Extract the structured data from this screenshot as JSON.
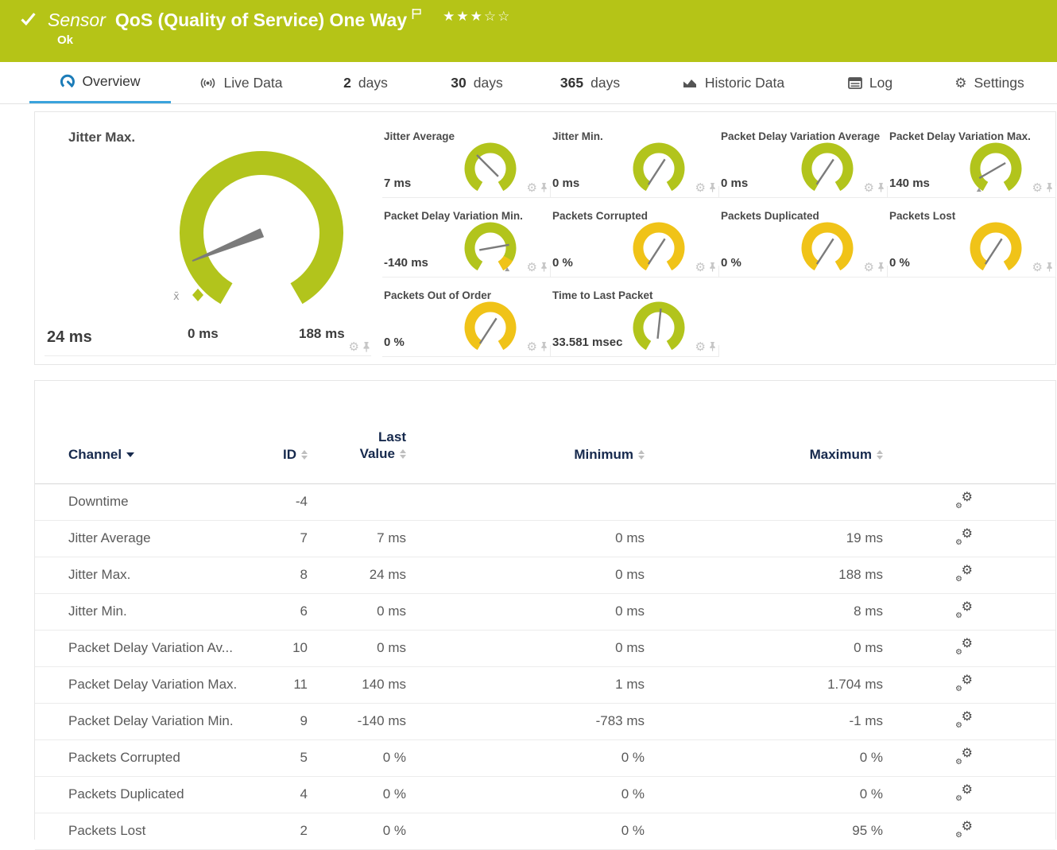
{
  "header": {
    "kind": "Sensor",
    "title": "QoS (Quality of Service) One Way",
    "status": "Ok",
    "rating": {
      "filled": 3,
      "total": 5
    }
  },
  "tabs": {
    "overview": "Overview",
    "live_data": "Live Data",
    "d2_num": "2",
    "d2_unit": "days",
    "d30_num": "30",
    "d30_unit": "days",
    "d365_num": "365",
    "d365_unit": "days",
    "historic": "Historic Data",
    "log": "Log",
    "settings": "Settings"
  },
  "big_gauge": {
    "label": "Jitter Max.",
    "value": "24 ms",
    "min_label": "0 ms",
    "max_label": "188 ms",
    "needle_deg": 248,
    "avg_marker": "x̄"
  },
  "mini_gauges": [
    {
      "label": "Jitter Average",
      "value": "7 ms",
      "color": "green",
      "needle_deg": 315
    },
    {
      "label": "Jitter Min.",
      "value": "0 ms",
      "color": "green",
      "needle_deg": 213
    },
    {
      "label": "Packet Delay Variation Average",
      "value": "0 ms",
      "color": "green",
      "needle_deg": 214
    },
    {
      "label": "Packet Delay Variation Max.",
      "value": "140 ms",
      "color": "green",
      "needle_deg": 240,
      "start_tick": true
    },
    {
      "label": "Packet Delay Variation Min.",
      "value": "-140 ms",
      "color": "green",
      "needle_deg": 80,
      "end_segment": true,
      "end_tick": true
    },
    {
      "label": "Packets Corrupted",
      "value": "0 %",
      "color": "yellow",
      "needle_deg": 213
    },
    {
      "label": "Packets Duplicated",
      "value": "0 %",
      "color": "yellow",
      "needle_deg": 213
    },
    {
      "label": "Packets Lost",
      "value": "0 %",
      "color": "yellow",
      "needle_deg": 213
    },
    {
      "label": "Packets Out of Order",
      "value": "0 %",
      "color": "yellow",
      "needle_deg": 213
    },
    {
      "label": "Time to Last Packet",
      "value": "33.581 msec",
      "color": "green",
      "needle_deg": 6
    }
  ],
  "channel_table": {
    "col_channel": "Channel",
    "col_id": "ID",
    "col_last_1": "Last",
    "col_last_2": "Value",
    "col_min": "Minimum",
    "col_max": "Maximum",
    "rows": [
      {
        "channel": "Downtime",
        "id": "-4",
        "last": "",
        "min": "",
        "max": ""
      },
      {
        "channel": "Jitter Average",
        "id": "7",
        "last": "7 ms",
        "min": "0 ms",
        "max": "19 ms"
      },
      {
        "channel": "Jitter Max.",
        "id": "8",
        "last": "24 ms",
        "min": "0 ms",
        "max": "188 ms"
      },
      {
        "channel": "Jitter Min.",
        "id": "6",
        "last": "0 ms",
        "min": "0 ms",
        "max": "8 ms"
      },
      {
        "channel": "Packet Delay Variation Av...",
        "id": "10",
        "last": "0 ms",
        "min": "0 ms",
        "max": "0 ms"
      },
      {
        "channel": "Packet Delay Variation Max.",
        "id": "11",
        "last": "140 ms",
        "min": "1 ms",
        "max": "1.704 ms"
      },
      {
        "channel": "Packet Delay Variation Min.",
        "id": "9",
        "last": "-140 ms",
        "min": "-783 ms",
        "max": "-1 ms"
      },
      {
        "channel": "Packets Corrupted",
        "id": "5",
        "last": "0 %",
        "min": "0 %",
        "max": "0 %"
      },
      {
        "channel": "Packets Duplicated",
        "id": "4",
        "last": "0 %",
        "min": "0 %",
        "max": "0 %"
      },
      {
        "channel": "Packets Lost",
        "id": "2",
        "last": "0 %",
        "min": "0 %",
        "max": "95 %"
      }
    ]
  },
  "colors": {
    "brand_green": "#b5c417",
    "gauge_green": "#b2c41c",
    "gauge_yellow": "#f0c318",
    "needle_gray": "#7b7b7b",
    "tab_active_blue": "#3aa3dc",
    "table_header_navy": "#16294d"
  }
}
